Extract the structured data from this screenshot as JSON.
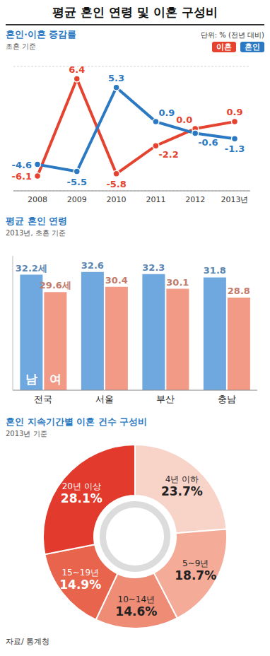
{
  "title": "평균 혼인 연령 및 이혼 구성비",
  "source": "자료/ 통계청",
  "chart_data": [
    {
      "type": "line",
      "title": "혼인·이혼 증감률",
      "subtitle": "초혼 기준",
      "unit": "단위: % (전년 대비)",
      "categories": [
        "2008",
        "2009",
        "2010",
        "2011",
        "2012",
        "2013년"
      ],
      "series": [
        {
          "name": "이혼",
          "color": "#e5432f",
          "marker": "circle",
          "values": [
            -6.1,
            6.4,
            -5.8,
            -2.2,
            0.0,
            0.9
          ],
          "value_labels": [
            "-6.1",
            "6.4",
            "-5.8",
            "-2.2",
            "0.0",
            "0.9"
          ]
        },
        {
          "name": "혼인",
          "color": "#2b79c2",
          "marker": "circle",
          "values": [
            -4.6,
            -5.5,
            5.3,
            0.9,
            -0.6,
            -1.3
          ],
          "value_labels": [
            "-4.6",
            "-5.5",
            "5.3",
            "0.9",
            "-0.6",
            "-1.3"
          ]
        }
      ],
      "ylim": [
        -8,
        8
      ],
      "yticks": [
        -8,
        -4,
        0,
        4,
        8
      ],
      "grid": true,
      "data_labels": true,
      "tick_labels": "x",
      "legend": "top-right"
    },
    {
      "type": "bar",
      "title": "평균 혼인 연령",
      "subtitle": "2013년, 초혼 기준",
      "categories": [
        "전국",
        "서울",
        "부산",
        "충남"
      ],
      "series": [
        {
          "name": "남",
          "color": "#6fa7df",
          "values": [
            32.2,
            32.6,
            32.3,
            31.8
          ],
          "value_labels": [
            "32.2세",
            "32.6",
            "32.3",
            "31.8"
          ]
        },
        {
          "name": "여",
          "color": "#f29a86",
          "values": [
            29.6,
            30.4,
            30.1,
            28.8
          ],
          "value_labels": [
            "29.6세",
            "30.4",
            "30.1",
            "28.8"
          ]
        }
      ],
      "ylim": [
        15,
        35
      ],
      "grid": false,
      "data_labels": true,
      "tick_labels": "x"
    },
    {
      "type": "pie",
      "title": "혼인 지속기간별 이혼 건수 구성비",
      "subtitle": "2013년 기준",
      "categories": [
        "4년 이하",
        "5~9년",
        "10~14년",
        "15~19년",
        "20년 이상"
      ],
      "values": [
        23.7,
        18.7,
        14.6,
        14.9,
        28.1
      ],
      "value_labels": [
        "23.7%",
        "18.7%",
        "14.6%",
        "14.9%",
        "28.1%"
      ],
      "colors": [
        "#f8d3c8",
        "#f4ab98",
        "#ee8c76",
        "#e8644c",
        "#e23a2c"
      ],
      "data_labels": true
    }
  ]
}
